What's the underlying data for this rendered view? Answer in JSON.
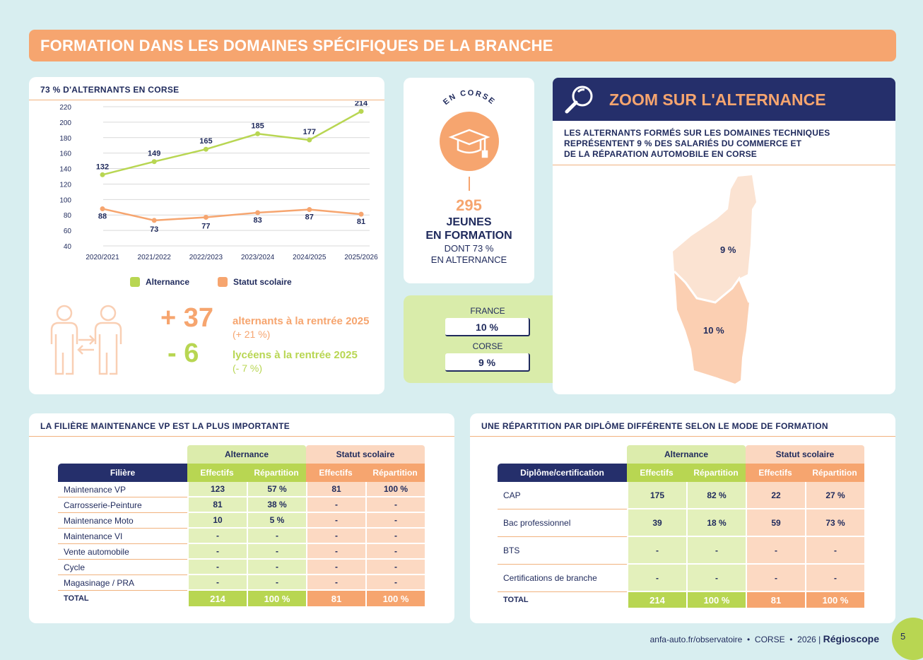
{
  "banner": {
    "title": "FORMATION DANS LES DOMAINES SPÉCIFIQUES DE LA BRANCHE"
  },
  "chart_card": {
    "title": "73 % D'ALTERNANTS EN CORSE",
    "legend": {
      "alternance": "Alternance",
      "scolaire": "Statut scolaire"
    }
  },
  "chart_data": {
    "type": "line",
    "title": "73 % D'ALTERNANTS EN CORSE",
    "categories": [
      "2020/2021",
      "2021/2022",
      "2022/2023",
      "2023/2024",
      "2024/2025",
      "2025/2026"
    ],
    "series": [
      {
        "name": "Alternance",
        "values": [
          132,
          149,
          165,
          185,
          177,
          214
        ],
        "color": "#b8d652"
      },
      {
        "name": "Statut scolaire",
        "values": [
          88,
          73,
          77,
          83,
          87,
          81
        ],
        "color": "#f6a56f"
      }
    ],
    "yticks": [
      220,
      200,
      180,
      160,
      140,
      120,
      100,
      80,
      60,
      40
    ],
    "ylim": [
      40,
      220
    ],
    "grid": true
  },
  "stats": {
    "alt_value": "+ 37",
    "alt_label": "alternants à la rentrée 2025",
    "alt_sub": "(+ 21 %)",
    "lyc_value": "- 6",
    "lyc_label": "lycéens à la rentrée 2025",
    "lyc_sub": "(- 7 %)"
  },
  "corse_card": {
    "arc": "EN CORSE",
    "number": "295",
    "line1": "JEUNES",
    "line2": "EN FORMATION",
    "line3": "DONT 73 %",
    "line4": "EN ALTERNANCE"
  },
  "compare": {
    "france_label": "FRANCE",
    "france_value": "10 %",
    "corse_label": "CORSE",
    "corse_value": "9 %"
  },
  "zoom": {
    "title": "ZOOM SUR L'ALTERNANCE",
    "text1": "LES ALTERNANTS FORMÉS SUR LES DOMAINES TECHNIQUES",
    "text2": "REPRÉSENTENT 9 % DES SALARIÉS DU COMMERCE ET",
    "text3": "DE LA RÉPARATION AUTOMOBILE EN CORSE",
    "map_north": "9 %",
    "map_south": "10 %"
  },
  "colors": {
    "navy": "#252f6b",
    "orange": "#f6a56f",
    "green": "#b8d652"
  },
  "table1": {
    "title": "LA FILIÈRE MAINTENANCE VP EST LA PLUS IMPORTANTE",
    "group_alt": "Alternance",
    "group_sco": "Statut scolaire",
    "headers": [
      "Filière",
      "Effectifs",
      "Répartition",
      "Effectifs",
      "Répartition"
    ],
    "rows": [
      [
        "Maintenance VP",
        "123",
        "57 %",
        "81",
        "100 %"
      ],
      [
        "Carrosserie-Peinture",
        "81",
        "38 %",
        "-",
        "-"
      ],
      [
        "Maintenance Moto",
        "10",
        "5 %",
        "-",
        "-"
      ],
      [
        "Maintenance VI",
        "-",
        "-",
        "-",
        "-"
      ],
      [
        "Vente automobile",
        "-",
        "-",
        "-",
        "-"
      ],
      [
        "Cycle",
        "-",
        "-",
        "-",
        "-"
      ],
      [
        "Magasinage / PRA",
        "-",
        "-",
        "-",
        "-"
      ]
    ],
    "total": [
      "TOTAL",
      "214",
      "100 %",
      "81",
      "100 %"
    ]
  },
  "table2": {
    "title": "UNE RÉPARTITION PAR DIPLÔME DIFFÉRENTE SELON LE MODE DE FORMATION",
    "group_alt": "Alternance",
    "group_sco": "Statut scolaire",
    "headers": [
      "Diplôme/certification",
      "Effectifs",
      "Répartition",
      "Effectifs",
      "Répartition"
    ],
    "rows": [
      [
        "CAP",
        "175",
        "82 %",
        "22",
        "27 %"
      ],
      [
        "Bac professionnel",
        "39",
        "18 %",
        "59",
        "73 %"
      ],
      [
        "BTS",
        "-",
        "-",
        "-",
        "-"
      ],
      [
        "Certifications de branche",
        "-",
        "-",
        "-",
        "-"
      ]
    ],
    "total": [
      "TOTAL",
      "214",
      "100 %",
      "81",
      "100 %"
    ]
  },
  "footer": {
    "site": "anfa-auto.fr/observatoire",
    "region": "CORSE",
    "year": "2026",
    "brand": "Régioscope",
    "page": "5"
  }
}
